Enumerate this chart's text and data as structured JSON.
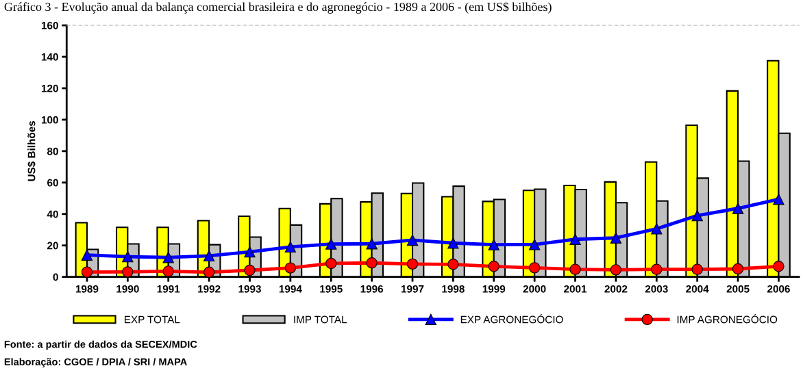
{
  "chart_data": {
    "type": "bar",
    "title": "Gráfico 3 - Evolução anual da balança comercial brasileira e do agronegócio - 1989 a 2006 - (em US$ bilhões)",
    "ylabel": "US$ Bilhões",
    "categories": [
      "1989",
      "1990",
      "1991",
      "1992",
      "1993",
      "1994",
      "1995",
      "1996",
      "1997",
      "1998",
      "1999",
      "2000",
      "2001",
      "2002",
      "2003",
      "2004",
      "2005",
      "2006"
    ],
    "series": [
      {
        "name": "EXP TOTAL",
        "color": "#ffff00",
        "values": [
          34.5,
          31.5,
          31.5,
          35.8,
          38.6,
          43.5,
          46.5,
          47.7,
          53,
          51,
          48,
          55,
          58.2,
          60.4,
          73.1,
          96.5,
          118.3,
          137.5
        ]
      },
      {
        "name": "IMP TOTAL",
        "color": "#c0c0c0",
        "values": [
          17.5,
          21,
          21,
          20.5,
          25.3,
          33,
          49.8,
          53.3,
          59.7,
          57.7,
          49.3,
          55.8,
          55.6,
          47.2,
          48.3,
          62.8,
          73.6,
          91.4
        ]
      },
      {
        "name": "EXP AGRONEGÓCIO",
        "type": "line",
        "color": "#0000ff",
        "marker": "triangle",
        "values": [
          13.9,
          12.9,
          12.4,
          13.4,
          15.9,
          19.1,
          20.9,
          21.1,
          23.4,
          21.5,
          20.5,
          20.6,
          23.9,
          24.8,
          30.6,
          39,
          43.6,
          49.4
        ]
      },
      {
        "name": "IMP AGRONEGÓCIO",
        "type": "line",
        "color": "#ff0000",
        "marker": "circle",
        "values": [
          3.1,
          3.2,
          3.6,
          3.0,
          4.2,
          5.7,
          8.6,
          8.9,
          8.2,
          8.0,
          6.7,
          5.8,
          4.8,
          4.5,
          4.8,
          4.8,
          5.1,
          6.7
        ]
      }
    ],
    "ylim": [
      0,
      160
    ],
    "yticks": [
      0,
      20,
      40,
      60,
      80,
      100,
      120,
      140,
      160
    ],
    "legend": "bottom",
    "annotations": [
      "Fonte: a partir de dados da SECEX/MDIC",
      "Elaboração: CGOE / DPIA / SRI / MAPA"
    ]
  }
}
